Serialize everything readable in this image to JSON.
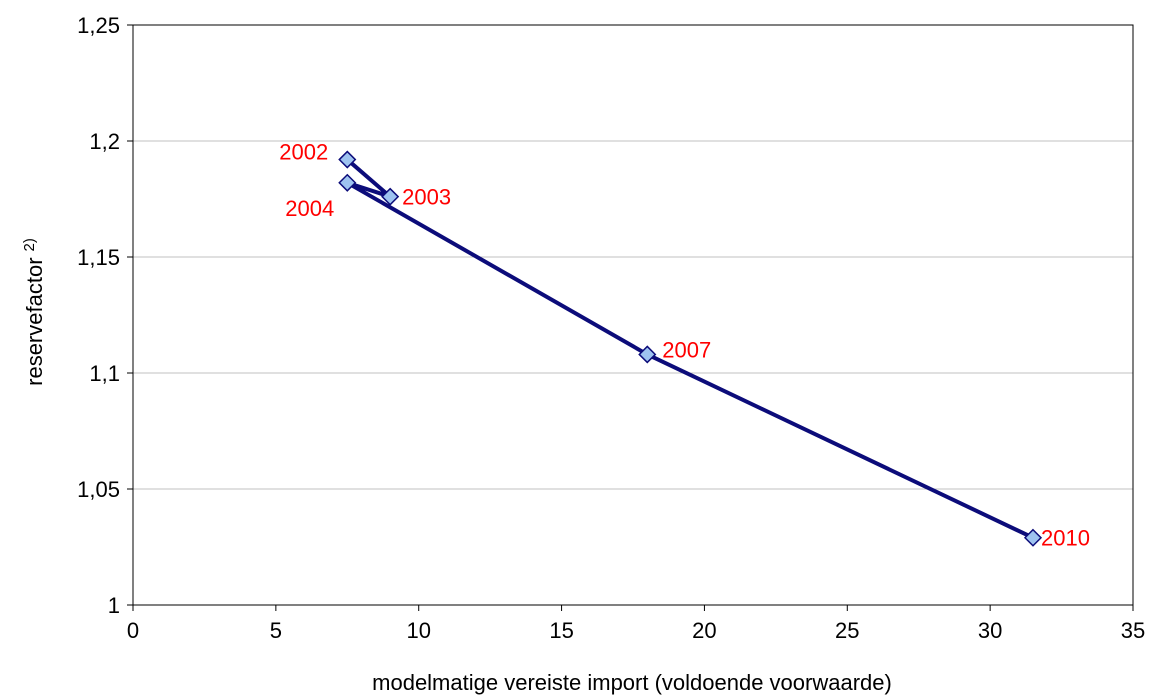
{
  "chart_data": {
    "type": "scatter",
    "title": "",
    "xlabel": "modelmatige vereiste import (voldoende voorwaarde)",
    "ylabel": "reservefactor",
    "ylabel_superscript": "2)",
    "xlim": [
      0,
      35
    ],
    "ylim": [
      1,
      1.25
    ],
    "x_ticks": [
      "0",
      "5",
      "10",
      "15",
      "20",
      "25",
      "30",
      "35"
    ],
    "y_ticks": [
      "1",
      "1,05",
      "1,1",
      "1,15",
      "1,2",
      "1,25"
    ],
    "grid": "horizontal",
    "legend": "none",
    "series": [
      {
        "points": [
          {
            "x": 7.5,
            "y": 1.192,
            "label": "2002"
          },
          {
            "x": 9.0,
            "y": 1.176,
            "label": "2003"
          },
          {
            "x": 7.5,
            "y": 1.182,
            "label": "2004"
          },
          {
            "x": 18.0,
            "y": 1.108,
            "label": "2007"
          },
          {
            "x": 31.5,
            "y": 1.029,
            "label": "2010"
          }
        ]
      }
    ],
    "colors": {
      "line": "#0c0c7a",
      "marker_fill": "#9ec3f0",
      "marker_stroke": "#0c0c7a",
      "label": "#ff0000",
      "grid": "#c0c0c0",
      "axis": "#000000"
    }
  }
}
